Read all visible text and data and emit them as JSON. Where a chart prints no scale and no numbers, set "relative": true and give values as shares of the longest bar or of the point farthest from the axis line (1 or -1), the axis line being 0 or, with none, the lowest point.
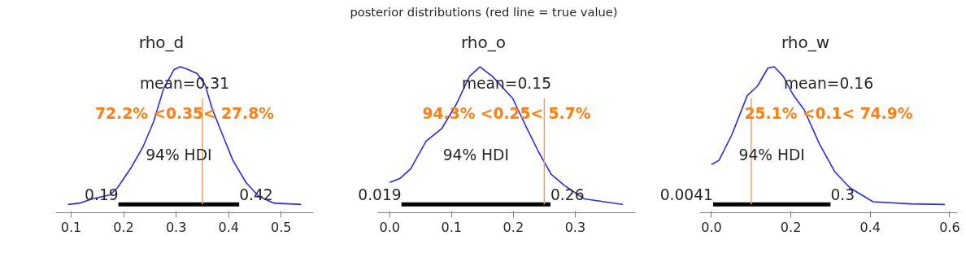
{
  "chart_data": [
    {
      "type": "line",
      "title": "rho_d",
      "relative": true,
      "annotations": [
        "posterior distributions (red line = true value)",
        "mean=0.31",
        "94% HDI",
        "0.19",
        "0.42"
      ],
      "x": [
        0.094,
        0.116,
        0.14,
        0.174,
        0.188,
        0.213,
        0.237,
        0.257,
        0.276,
        0.296,
        0.308,
        0.323,
        0.34,
        0.355,
        0.369,
        0.389,
        0.408,
        0.433,
        0.457,
        0.486,
        0.538
      ],
      "series": [
        {
          "color": "#2b2be8",
          "values": [
            0,
            0.01,
            0.04,
            0.07,
            0.12,
            0.26,
            0.42,
            0.6,
            0.84,
            0.98,
            1.0,
            0.98,
            0.95,
            0.87,
            0.69,
            0.5,
            0.32,
            0.16,
            0.06,
            0.01,
            0
          ]
        },
        {
          "color": "#000000",
          "x": [
            0.19,
            0.42
          ],
          "values": [
            0,
            0
          ]
        }
      ],
      "xlim": [
        0.071,
        0.561
      ],
      "xticks": [
        0.1,
        0.2,
        0.3,
        0.4,
        0.5
      ],
      "tick_labels": "x",
      "grid": false,
      "ref_lines": [
        {
          "axis": "x",
          "value": 0.35,
          "label": "72.2% <0.35< 27.8%",
          "color": "#f5a05a"
        }
      ]
    },
    {
      "type": "line",
      "title": "rho_o",
      "relative": true,
      "annotations": [
        "mean=0.15",
        "94% HDI",
        "0.019",
        "0.26"
      ],
      "x": [
        0.0,
        0.017,
        0.034,
        0.059,
        0.084,
        0.108,
        0.129,
        0.146,
        0.166,
        0.199,
        0.22,
        0.241,
        0.261,
        0.282,
        0.315,
        0.377
      ],
      "series": [
        {
          "color": "#2b2be8",
          "values": [
            0.16,
            0.19,
            0.26,
            0.46,
            0.55,
            0.73,
            0.93,
            1.0,
            0.93,
            0.77,
            0.57,
            0.38,
            0.22,
            0.14,
            0.04,
            0
          ]
        },
        {
          "color": "#000000",
          "x": [
            0.019,
            0.26
          ],
          "values": [
            0,
            0
          ]
        }
      ],
      "xlim": [
        -0.019,
        0.397
      ],
      "xticks": [
        {
          "value": 0,
          "label": "0.0"
        },
        0.1,
        0.2,
        0.3
      ],
      "tick_labels": "x",
      "grid": false,
      "ref_lines": [
        {
          "axis": "x",
          "value": 0.25,
          "label": "94.3% <0.25< 5.7%",
          "color": "#f5a05a"
        }
      ]
    },
    {
      "type": "line",
      "title": "rho_w",
      "relative": true,
      "annotations": [
        "mean=0.16",
        "94% HDI",
        "0.0041",
        "0.3"
      ],
      "x": [
        0.0,
        0.019,
        0.052,
        0.09,
        0.116,
        0.142,
        0.158,
        0.181,
        0.207,
        0.233,
        0.272,
        0.31,
        0.349,
        0.407,
        0.504,
        0.588
      ],
      "series": [
        {
          "color": "#2b2be8",
          "values": [
            0.29,
            0.32,
            0.51,
            0.79,
            0.86,
            0.99,
            1.0,
            0.93,
            0.79,
            0.69,
            0.44,
            0.24,
            0.12,
            0.02,
            0.004,
            0
          ]
        },
        {
          "color": "#000000",
          "x": [
            0.0041,
            0.3
          ],
          "values": [
            0,
            0
          ]
        }
      ],
      "xlim": [
        -0.029,
        0.619
      ],
      "xticks": [
        {
          "value": 0,
          "label": "0.0"
        },
        0.2,
        0.4,
        0.6
      ],
      "tick_labels": "x",
      "grid": false,
      "ref_lines": [
        {
          "axis": "x",
          "value": 0.1,
          "label": "25.1% <0.1< 74.9%",
          "color": "#f5a05a"
        }
      ]
    }
  ]
}
